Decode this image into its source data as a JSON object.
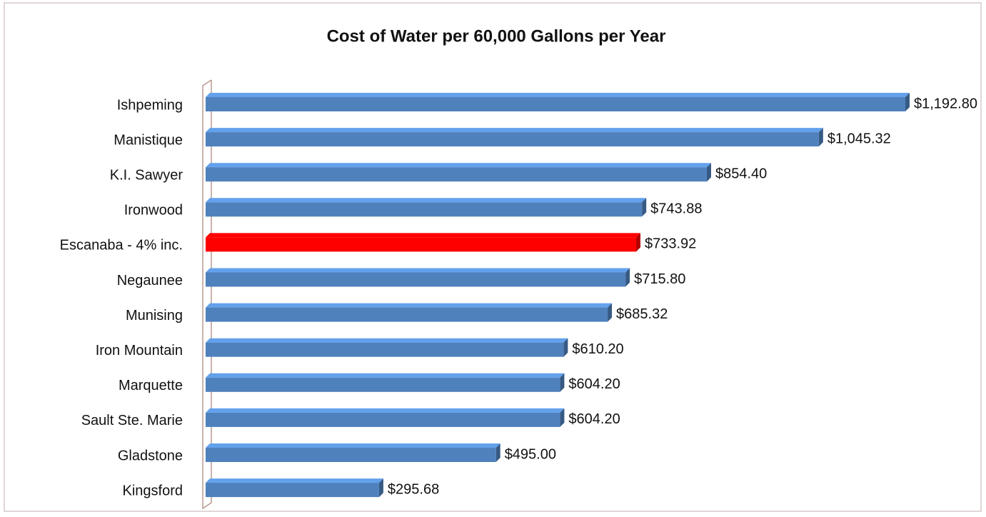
{
  "chart_data": {
    "type": "bar",
    "orientation": "horizontal",
    "title": "Cost of Water per 60,000 Gallons per Year",
    "categories": [
      "Ishpeming",
      "Manistique",
      "K.I. Sawyer",
      "Ironwood",
      "Escanaba - 4% inc.",
      "Negaunee",
      "Munising",
      "Iron Mountain",
      "Marquette",
      "Sault Ste. Marie",
      "Gladstone",
      "Kingsford"
    ],
    "values": [
      1192.8,
      1045.32,
      854.4,
      743.88,
      733.92,
      715.8,
      685.32,
      610.2,
      604.2,
      604.2,
      495.0,
      295.68
    ],
    "value_labels": [
      "$1,192.80",
      "$1,045.32",
      "$854.40",
      "$743.88",
      "$733.92",
      "$715.80",
      "$685.32",
      "$610.20",
      "$604.20",
      "$604.20",
      "$495.00",
      "$295.68"
    ],
    "colors": [
      "#4f81bd",
      "#4f81bd",
      "#4f81bd",
      "#4f81bd",
      "#ff0000",
      "#4f81bd",
      "#4f81bd",
      "#4f81bd",
      "#4f81bd",
      "#4f81bd",
      "#4f81bd",
      "#4f81bd"
    ]
  }
}
